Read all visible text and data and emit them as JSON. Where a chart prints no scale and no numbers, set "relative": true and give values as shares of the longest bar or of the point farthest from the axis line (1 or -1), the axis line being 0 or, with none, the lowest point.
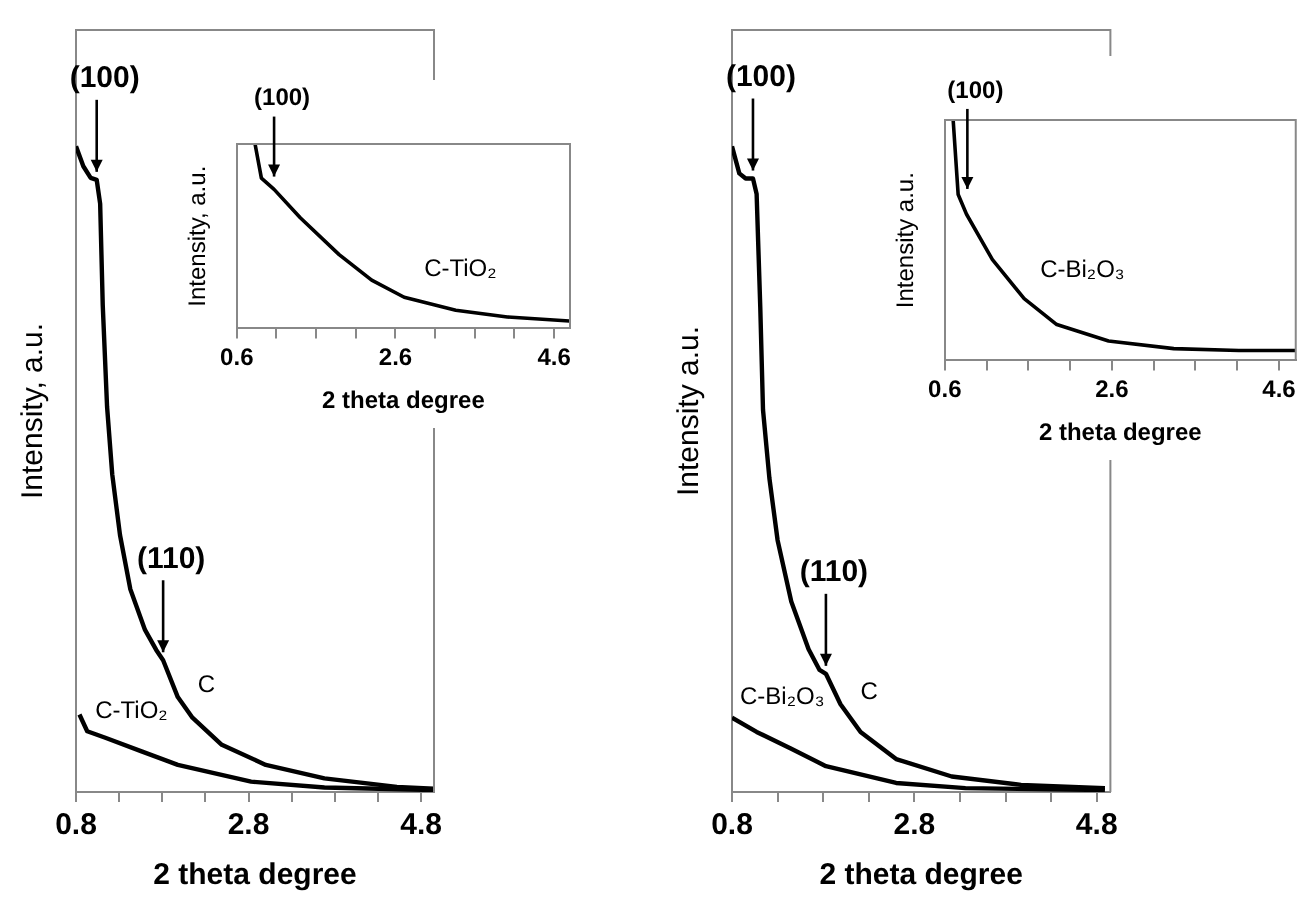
{
  "chart_data": [
    {
      "type": "line",
      "xlabel": "2 theta degree",
      "ylabel": "Intensity, a.u.",
      "relative": true,
      "tick_labels": "x",
      "xlim": [
        0.8,
        4.95
      ],
      "xticks": [
        0.8,
        {
          "value": 1.3,
          "label": null
        },
        {
          "value": 1.8,
          "label": null
        },
        {
          "value": 2.3,
          "label": null
        },
        2.8,
        {
          "value": 3.3,
          "label": null
        },
        {
          "value": 3.8,
          "label": null
        },
        {
          "value": 4.3,
          "label": null
        },
        4.8
      ],
      "series": [
        {
          "name": "C",
          "color": "#000000",
          "x": [
            0.8,
            0.885,
            0.97,
            1.04,
            1.08,
            1.11,
            1.16,
            1.22,
            1.31,
            1.43,
            1.6,
            1.73,
            1.81,
            1.98,
            2.15,
            2.49,
            3.0,
            3.68,
            4.52,
            4.95
          ],
          "values": [
            1.0,
            0.969,
            0.951,
            0.948,
            0.911,
            0.754,
            0.597,
            0.492,
            0.398,
            0.314,
            0.251,
            0.22,
            0.204,
            0.147,
            0.115,
            0.073,
            0.042,
            0.021,
            0.008,
            0.005
          ]
        },
        {
          "name": "C-TiO₂",
          "color": "#000000",
          "x": [
            0.84,
            0.93,
            1.14,
            1.56,
            1.98,
            2.83,
            3.68,
            4.94
          ],
          "values": [
            0.12,
            0.094,
            0.084,
            0.063,
            0.042,
            0.016,
            0.007,
            0.003
          ]
        }
      ],
      "annotations": [
        {
          "text": "(100)",
          "x": 1.04,
          "y": 0.948
        },
        {
          "text": "(110)",
          "x": 1.81,
          "y": 0.204
        }
      ]
    },
    {
      "type": "line",
      "xlabel": "2 theta degree",
      "ylabel": "Intensity, a.u.",
      "relative": true,
      "tick_labels": "x",
      "xlim": [
        0.6,
        4.8
      ],
      "xticks": [
        0.6,
        {
          "value": 1.1,
          "label": null
        },
        {
          "value": 1.6,
          "label": null
        },
        {
          "value": 2.1,
          "label": null
        },
        2.6,
        {
          "value": 3.1,
          "label": null
        },
        {
          "value": 3.6,
          "label": null
        },
        {
          "value": 4.1,
          "label": null
        },
        4.6
      ],
      "series": [
        {
          "name": "C-TiO₂",
          "color": "#000000",
          "x": [
            0.83,
            0.91,
            1.07,
            1.4,
            1.89,
            2.3,
            2.71,
            3.36,
            4.01,
            4.79
          ],
          "values": [
            1.0,
            0.815,
            0.754,
            0.6,
            0.4,
            0.262,
            0.169,
            0.098,
            0.062,
            0.04
          ]
        }
      ],
      "annotations": [
        {
          "text": "(100)",
          "x": 1.07,
          "y": 0.78
        }
      ]
    },
    {
      "type": "line",
      "xlabel": "2 theta degree",
      "ylabel": "Intensity a.u.",
      "relative": true,
      "tick_labels": "x",
      "xlim": [
        0.8,
        4.95
      ],
      "xticks": [
        0.8,
        {
          "value": 1.3,
          "label": null
        },
        {
          "value": 1.8,
          "label": null
        },
        {
          "value": 2.3,
          "label": null
        },
        2.8,
        {
          "value": 3.3,
          "label": null
        },
        {
          "value": 3.8,
          "label": null
        },
        {
          "value": 4.3,
          "label": null
        },
        4.8
      ],
      "series": [
        {
          "name": "C",
          "color": "#000000",
          "x": [
            0.8,
            0.88,
            0.95,
            1.03,
            1.07,
            1.11,
            1.14,
            1.21,
            1.3,
            1.45,
            1.64,
            1.76,
            1.83,
            1.99,
            2.21,
            2.6,
            3.21,
            3.97,
            4.89
          ],
          "values": [
            1.0,
            0.958,
            0.95,
            0.95,
            0.926,
            0.751,
            0.592,
            0.486,
            0.39,
            0.295,
            0.221,
            0.189,
            0.183,
            0.136,
            0.093,
            0.051,
            0.024,
            0.011,
            0.006
          ]
        },
        {
          "name": "C-Bi₂O₃",
          "color": "#000000",
          "x": [
            0.8,
            1.07,
            1.45,
            1.83,
            2.6,
            3.36,
            4.89
          ],
          "values": [
            0.115,
            0.093,
            0.067,
            0.04,
            0.014,
            0.006,
            0.003
          ]
        }
      ],
      "annotations": [
        {
          "text": "(100)",
          "x": 1.03,
          "y": 0.95
        },
        {
          "text": "(110)",
          "x": 1.83,
          "y": 0.183
        }
      ]
    },
    {
      "type": "line",
      "xlabel": "2 theta degree",
      "ylabel": "Intensity a.u.",
      "relative": true,
      "tick_labels": "x",
      "xlim": [
        0.6,
        4.8
      ],
      "xticks": [
        0.6,
        {
          "value": 1.1,
          "label": null
        },
        {
          "value": 1.6,
          "label": null
        },
        {
          "value": 2.1,
          "label": null
        },
        2.6,
        {
          "value": 3.1,
          "label": null
        },
        {
          "value": 3.6,
          "label": null
        },
        {
          "value": 4.1,
          "label": null
        },
        4.6
      ],
      "series": [
        {
          "name": "C-Bi₂O₃",
          "color": "#000000",
          "x": [
            0.7,
            0.76,
            0.86,
            1.17,
            1.55,
            1.94,
            2.56,
            3.34,
            4.12,
            4.8
          ],
          "values": [
            1.0,
            0.69,
            0.608,
            0.419,
            0.257,
            0.149,
            0.081,
            0.049,
            0.041,
            0.041
          ]
        }
      ],
      "annotations": [
        {
          "text": "(100)",
          "x": 0.87,
          "y": 0.68
        }
      ]
    }
  ]
}
